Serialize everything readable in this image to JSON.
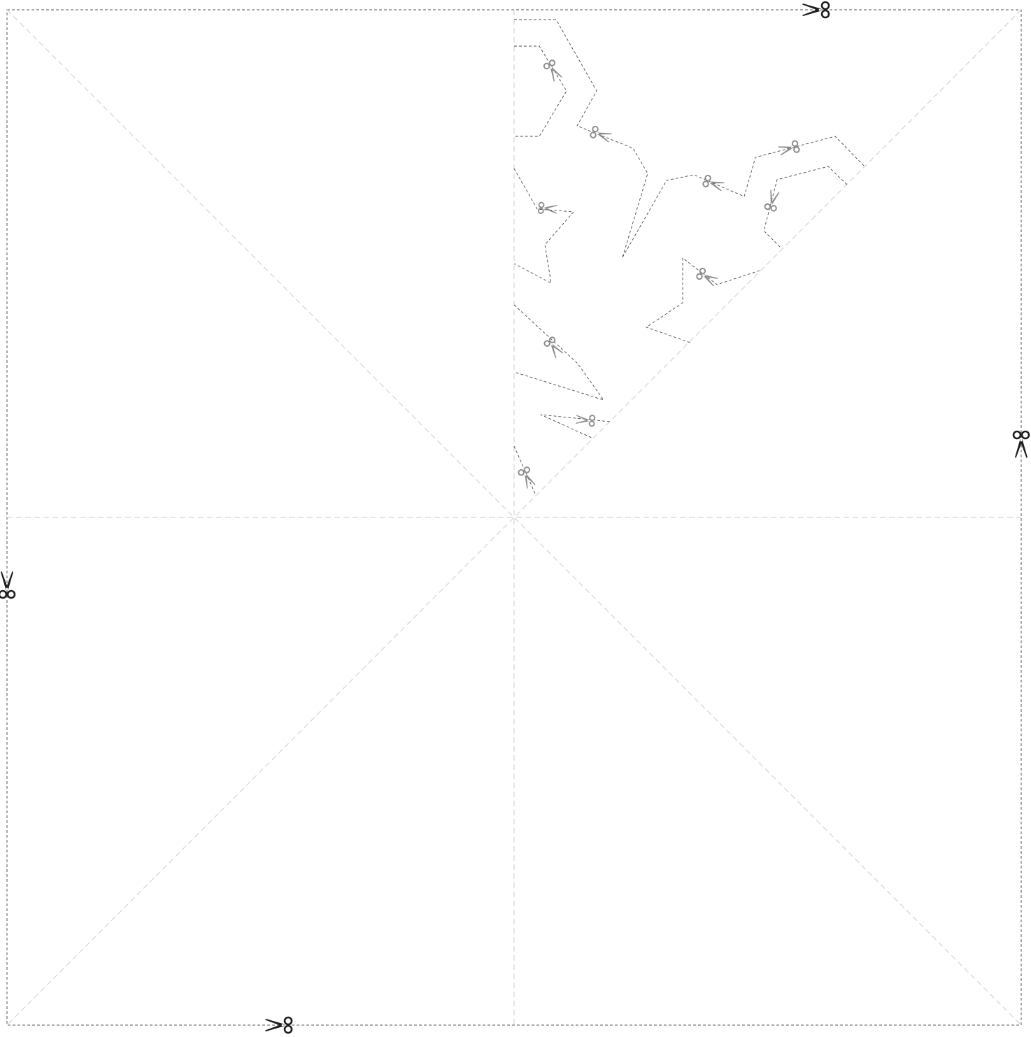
{
  "sheet": {
    "background": "#ffffff",
    "outline_color": "#555555",
    "fold_line_color": "#d4d4d4",
    "cut_line_color": "#4a4a4a",
    "scissor_color_outer": "#1e1e1e",
    "scissor_color_inner": "#8c8c8c"
  },
  "icons": {
    "outer_scissors": "scissors-icon",
    "inner_scissors": "scissors-icon"
  }
}
